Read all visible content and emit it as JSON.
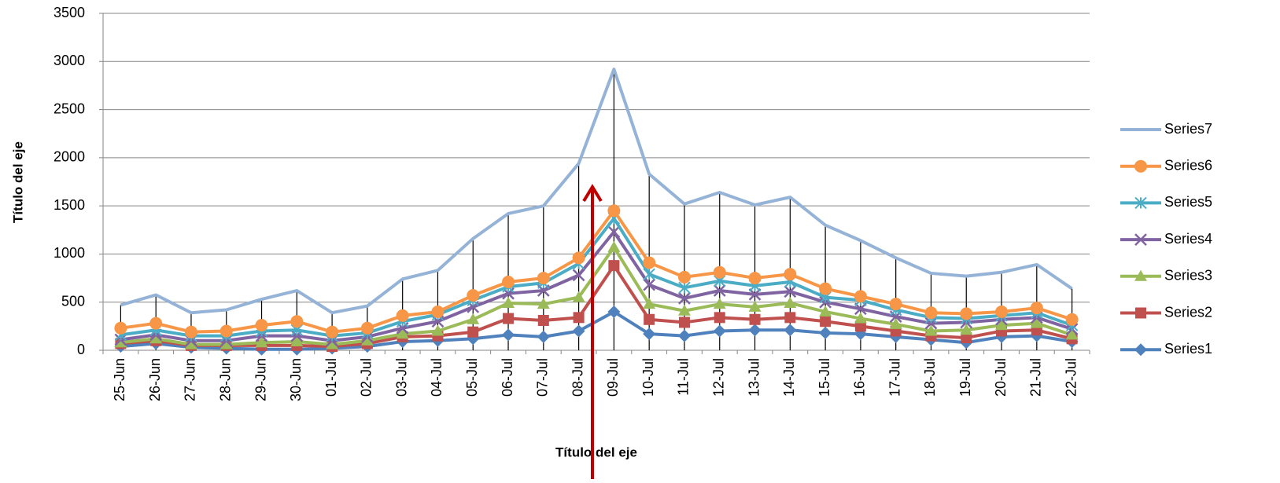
{
  "chart_data": {
    "type": "line",
    "x_label": "Título del eje",
    "y_label": "Título del eje",
    "categories": [
      "25-Jun",
      "26-Jun",
      "27-Jun",
      "28-Jun",
      "29-Jun",
      "30-Jun",
      "01-Jul",
      "02-Jul",
      "03-Jul",
      "04-Jul",
      "05-Jul",
      "06-Jul",
      "07-Jul",
      "08-Jul",
      "09-Jul",
      "10-Jul",
      "11-Jul",
      "12-Jul",
      "13-Jul",
      "14-Jul",
      "15-Jul",
      "16-Jul",
      "17-Jul",
      "18-Jul",
      "19-Jul",
      "20-Jul",
      "21-Jul",
      "22-Jul"
    ],
    "series": [
      {
        "name": "Series1",
        "color": "#4f81bd",
        "marker": "diamond",
        "values": [
          40,
          70,
          30,
          20,
          10,
          10,
          20,
          40,
          90,
          100,
          120,
          160,
          140,
          200,
          400,
          170,
          150,
          200,
          210,
          210,
          180,
          170,
          140,
          110,
          80,
          140,
          150,
          90
        ]
      },
      {
        "name": "Series2",
        "color": "#c0504d",
        "marker": "square",
        "values": [
          70,
          100,
          50,
          50,
          50,
          50,
          40,
          70,
          140,
          150,
          190,
          330,
          310,
          340,
          880,
          320,
          290,
          340,
          320,
          340,
          300,
          250,
          200,
          150,
          130,
          200,
          210,
          120
        ]
      },
      {
        "name": "Series3",
        "color": "#9bbb59",
        "marker": "triangle",
        "values": [
          80,
          120,
          60,
          60,
          80,
          90,
          60,
          100,
          170,
          200,
          320,
          490,
          480,
          550,
          1070,
          480,
          410,
          480,
          450,
          490,
          400,
          330,
          270,
          200,
          210,
          260,
          280,
          160
        ]
      },
      {
        "name": "Series4",
        "color": "#8064a2",
        "marker": "x",
        "values": [
          110,
          160,
          100,
          100,
          150,
          150,
          100,
          140,
          230,
          300,
          450,
          590,
          620,
          780,
          1230,
          680,
          540,
          620,
          580,
          610,
          500,
          430,
          350,
          280,
          290,
          320,
          340,
          220
        ]
      },
      {
        "name": "Series5",
        "color": "#4bacc6",
        "marker": "star",
        "values": [
          160,
          210,
          150,
          150,
          200,
          210,
          150,
          180,
          300,
          370,
          520,
          660,
          700,
          900,
          1370,
          790,
          650,
          720,
          670,
          710,
          550,
          520,
          420,
          340,
          330,
          360,
          390,
          260
        ]
      },
      {
        "name": "Series6",
        "color": "#f79646",
        "marker": "circle",
        "values": [
          230,
          280,
          190,
          200,
          260,
          300,
          190,
          230,
          360,
          400,
          570,
          710,
          750,
          960,
          1450,
          910,
          760,
          810,
          750,
          790,
          640,
          560,
          480,
          390,
          380,
          400,
          440,
          320
        ]
      },
      {
        "name": "Series7",
        "color": "#95b3d7",
        "marker": "none",
        "values": [
          470,
          575,
          390,
          420,
          530,
          620,
          390,
          460,
          740,
          830,
          1160,
          1420,
          1500,
          1940,
          2920,
          1830,
          1520,
          1640,
          1510,
          1590,
          1300,
          1140,
          960,
          800,
          770,
          810,
          890,
          640
        ]
      }
    ],
    "ylim": [
      0,
      3500
    ],
    "yticks": [
      0,
      500,
      1000,
      1500,
      2000,
      2500,
      3000,
      3500
    ],
    "grid": true,
    "drop_lines": true,
    "legend": "right"
  }
}
